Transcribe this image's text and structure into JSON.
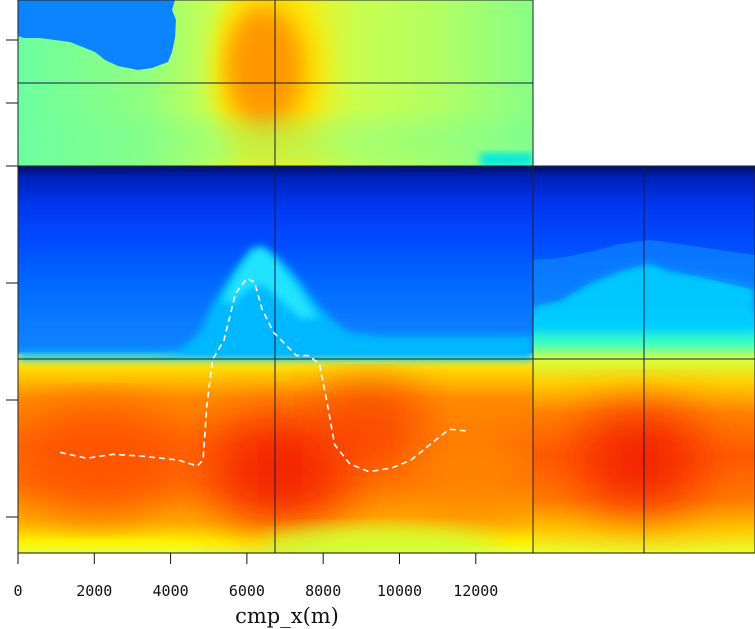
{
  "chart_data": {
    "type": "heatmap",
    "title": "",
    "xlabel": "cmp_x(m)",
    "ylabel": "",
    "xlim": [
      0,
      13500
    ],
    "xticks": [
      0,
      2000,
      4000,
      6000,
      8000,
      10000,
      12000
    ],
    "tick_labels": [
      "0",
      "2000",
      "4000",
      "6000",
      "8000",
      "10000",
      "12000"
    ],
    "colormap": "jet",
    "panels": [
      "top-slice",
      "main-section",
      "side-slice"
    ],
    "overlay": {
      "name": "dashed-horizon",
      "color": "#ffffff",
      "points": [
        [
          1100,
          0.74
        ],
        [
          1800,
          0.755
        ],
        [
          2500,
          0.745
        ],
        [
          3300,
          0.75
        ],
        [
          4200,
          0.76
        ],
        [
          4700,
          0.775
        ],
        [
          4850,
          0.76
        ],
        [
          4950,
          0.62
        ],
        [
          5100,
          0.5
        ],
        [
          5400,
          0.45
        ],
        [
          5700,
          0.33
        ],
        [
          6000,
          0.29
        ],
        [
          6200,
          0.3
        ],
        [
          6400,
          0.37
        ],
        [
          6700,
          0.43
        ],
        [
          7000,
          0.46
        ],
        [
          7300,
          0.49
        ],
        [
          7600,
          0.49
        ],
        [
          7900,
          0.51
        ],
        [
          8100,
          0.61
        ],
        [
          8300,
          0.72
        ],
        [
          8700,
          0.77
        ],
        [
          9200,
          0.79
        ],
        [
          9800,
          0.78
        ],
        [
          10300,
          0.76
        ],
        [
          10800,
          0.72
        ],
        [
          11300,
          0.68
        ],
        [
          11800,
          0.685
        ]
      ]
    },
    "crosshair_x": 6700
  }
}
